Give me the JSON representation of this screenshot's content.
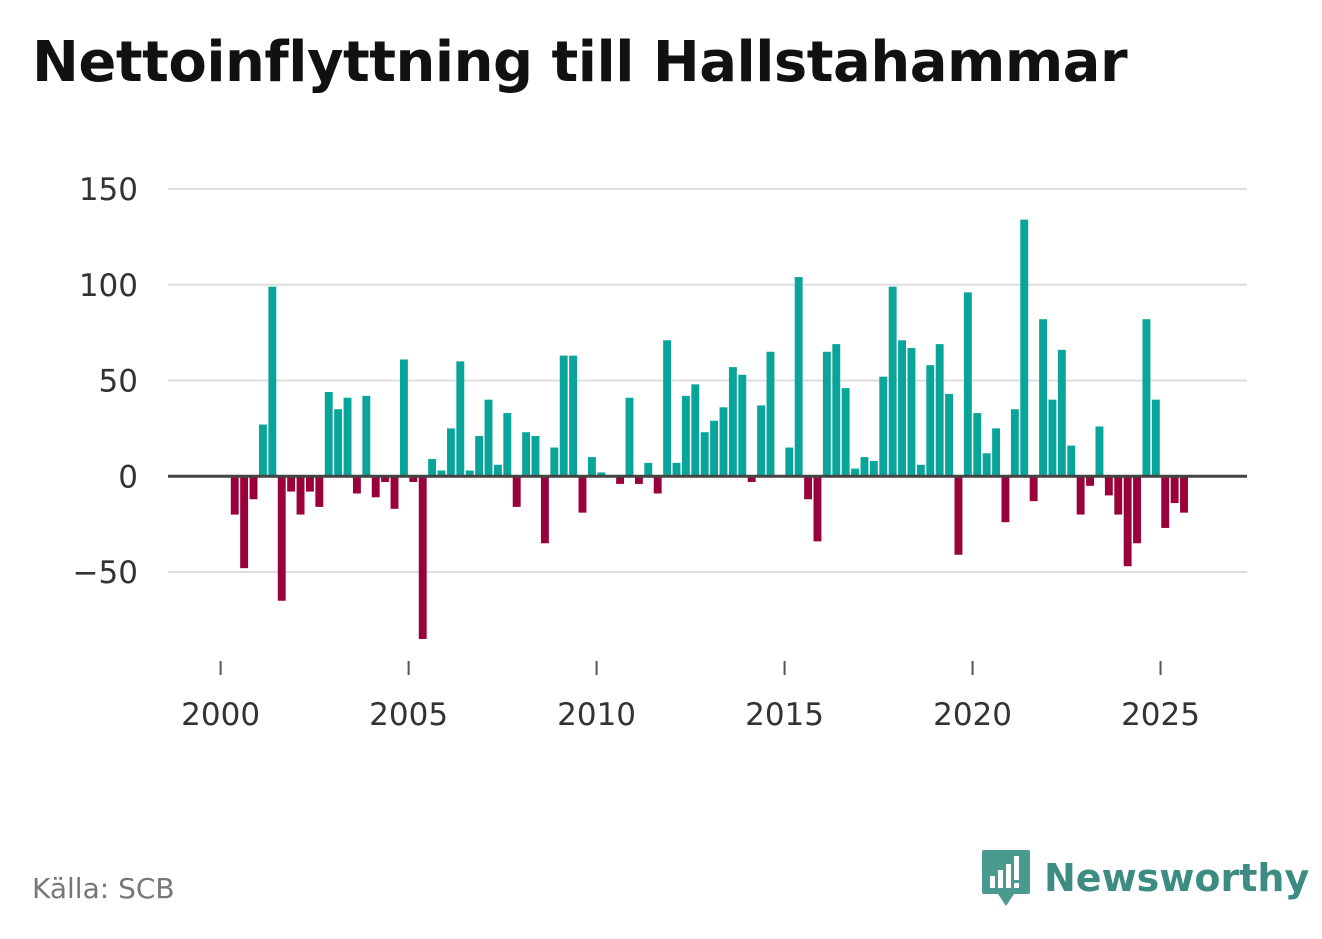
{
  "title": "Nettoinflyttning till Hallstahammar",
  "source": "Källa: SCB",
  "brand": {
    "name": "Newsworthy",
    "icon": "newsworthy-logo-icon"
  },
  "colors": {
    "positive": "#0aa59a",
    "negative": "#9a0039",
    "grid": "#dedede",
    "zero_line": "#444444",
    "text": "#333333",
    "brand": "#3d8c82"
  },
  "chart_data": {
    "type": "bar",
    "title": "Nettoinflyttning till Hallstahammar",
    "xlabel": "",
    "ylabel": "",
    "ylim": [
      -90,
      150
    ],
    "xlim": [
      1998.6,
      2027.3
    ],
    "yticks": [
      150,
      100,
      50,
      0,
      -50
    ],
    "ytick_labels": [
      "150",
      "100",
      "50",
      "0",
      "−50"
    ],
    "xticks": [
      2000,
      2005,
      2010,
      2015,
      2020,
      2025
    ],
    "xtick_labels": [
      "2000",
      "2005",
      "2010",
      "2015",
      "2020",
      "2025"
    ],
    "grid": true,
    "start_year": 2000,
    "start_quarter": 1,
    "period": "quarter",
    "values": [
      0,
      -20,
      -48,
      -12,
      27,
      99,
      -65,
      -8,
      -20,
      -8,
      -16,
      44,
      35,
      41,
      -9,
      42,
      -11,
      -3,
      -17,
      61,
      -3,
      -85,
      9,
      3,
      25,
      60,
      3,
      21,
      40,
      6,
      33,
      -16,
      23,
      21,
      -35,
      15,
      63,
      63,
      -19,
      10,
      2,
      0,
      -4,
      41,
      -4,
      7,
      -9,
      71,
      7,
      42,
      48,
      23,
      29,
      36,
      57,
      53,
      -3,
      37,
      65,
      0,
      15,
      104,
      -12,
      -34,
      65,
      69,
      46,
      4,
      10,
      8,
      52,
      99,
      71,
      67,
      6,
      58,
      69,
      43,
      -41,
      96,
      33,
      12,
      25,
      -24,
      35,
      134,
      -13,
      82,
      40,
      66,
      16,
      -20,
      -5,
      26,
      -10,
      -20,
      -47,
      -35,
      82,
      40,
      -27,
      -14,
      -19
    ]
  }
}
